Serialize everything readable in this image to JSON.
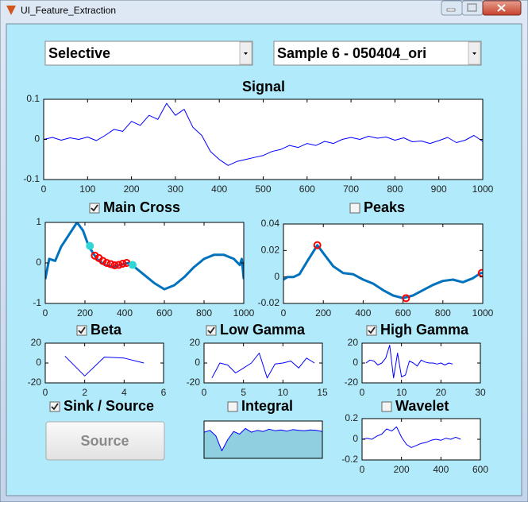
{
  "window": {
    "title": "UI_Feature_Extraction"
  },
  "dropdowns": [
    "Selective",
    "Sample 6 - 050404_ori"
  ],
  "button": {
    "label": "Source",
    "checkbox": {
      "label": "Sink / Source",
      "checked": true
    }
  },
  "charts": [
    {
      "type": "line",
      "title": "Signal",
      "xlim": [
        0,
        1000
      ],
      "ylim": [
        -0.1,
        0.1
      ],
      "xticks": [
        0,
        100,
        200,
        300,
        400,
        500,
        600,
        700,
        800,
        900,
        1000
      ],
      "yticks": [
        -0.1,
        0,
        0.1
      ],
      "series": [
        {
          "style": "line",
          "color": "#0000ff",
          "width": 1,
          "x": [
            0,
            20,
            40,
            60,
            80,
            100,
            120,
            140,
            160,
            180,
            200,
            220,
            240,
            260,
            280,
            300,
            320,
            340,
            360,
            380,
            400,
            420,
            440,
            460,
            480,
            500,
            520,
            540,
            560,
            580,
            600,
            620,
            640,
            660,
            680,
            700,
            720,
            740,
            760,
            780,
            800,
            820,
            840,
            860,
            880,
            900,
            920,
            940,
            960,
            980,
            1000
          ],
          "values": [
            0,
            0.005,
            -0.002,
            0.004,
            0,
            0.006,
            -0.003,
            0.01,
            0.025,
            0.02,
            0.045,
            0.035,
            0.06,
            0.05,
            0.09,
            0.06,
            0.075,
            0.03,
            0.01,
            -0.03,
            -0.05,
            -0.065,
            -0.055,
            -0.05,
            -0.045,
            -0.04,
            -0.03,
            -0.025,
            -0.015,
            -0.02,
            -0.01,
            -0.015,
            -0.005,
            -0.01,
            0,
            0.005,
            0,
            0.008,
            0.003,
            0.006,
            -0.002,
            0.004,
            -0.006,
            -0.004,
            -0.01,
            -0.003,
            0.005,
            -0.008,
            -0.002,
            0.01,
            -0.005
          ]
        }
      ]
    },
    {
      "type": "line",
      "checkbox": {
        "label": "Main Cross",
        "checked": true
      },
      "xlim": [
        0,
        1000
      ],
      "ylim": [
        -1,
        1
      ],
      "xticks": [
        0,
        200,
        400,
        600,
        800,
        1000
      ],
      "yticks": [
        -1,
        0,
        1
      ],
      "series": [
        {
          "style": "line",
          "color": "#0072bd",
          "width": 3,
          "x": [
            0,
            20,
            50,
            80,
            120,
            160,
            190,
            220,
            260,
            300,
            340,
            380,
            420,
            450,
            500,
            550,
            600,
            650,
            700,
            750,
            800,
            850,
            900,
            950,
            980,
            990,
            1000
          ],
          "values": [
            -0.4,
            0.1,
            0.05,
            0.4,
            0.7,
            1,
            0.8,
            0.4,
            0.1,
            -0.05,
            -0.1,
            -0.05,
            0,
            -0.1,
            -0.3,
            -0.5,
            -0.65,
            -0.55,
            -0.35,
            -0.1,
            0.1,
            0.2,
            0.2,
            0.1,
            -0.05,
            0.1,
            -0.4
          ]
        },
        {
          "style": "marker",
          "color": "#ff0000",
          "fill": "none",
          "x": [
            250,
            270,
            290,
            310,
            330,
            350,
            370,
            390,
            410
          ],
          "values": [
            0.18,
            0.12,
            0.05,
            0,
            -0.03,
            -0.06,
            -0.05,
            -0.02,
            0
          ]
        },
        {
          "style": "marker",
          "color": "#30d5d5",
          "fill": "#30d5d5",
          "x": [
            225,
            440
          ],
          "values": [
            0.42,
            -0.05
          ]
        }
      ]
    },
    {
      "type": "line",
      "checkbox": {
        "label": "Peaks",
        "checked": false
      },
      "xlim": [
        0,
        1000
      ],
      "ylim": [
        -0.02,
        0.04
      ],
      "xticks": [
        0,
        200,
        400,
        600,
        800,
        1000
      ],
      "yticks": [
        -0.02,
        0,
        0.02,
        0.04
      ],
      "series": [
        {
          "style": "line",
          "color": "#0072bd",
          "width": 3,
          "x": [
            0,
            20,
            50,
            80,
            120,
            170,
            200,
            250,
            300,
            350,
            400,
            450,
            500,
            550,
            600,
            650,
            700,
            750,
            800,
            850,
            900,
            950,
            990,
            1000
          ],
          "values": [
            -0.002,
            0,
            0,
            0.002,
            0.012,
            0.024,
            0.018,
            0.008,
            0.003,
            0.002,
            -0.002,
            -0.005,
            -0.01,
            -0.014,
            -0.016,
            -0.014,
            -0.01,
            -0.006,
            -0.003,
            -0.002,
            -0.004,
            -0.001,
            0.003,
            0.003
          ]
        },
        {
          "style": "marker",
          "color": "#ff0000",
          "fill": "none",
          "x": [
            170,
            615,
            995
          ],
          "values": [
            0.024,
            -0.016,
            0.003
          ]
        }
      ]
    },
    {
      "type": "line",
      "checkbox": {
        "label": "Beta",
        "checked": true
      },
      "xlim": [
        0,
        6
      ],
      "ylim": [
        -20,
        20
      ],
      "xticks": [
        0,
        2,
        4,
        6
      ],
      "yticks": [
        -20,
        0,
        20
      ],
      "series": [
        {
          "style": "line",
          "color": "#0000ff",
          "width": 1,
          "x": [
            1,
            2,
            3,
            4,
            5
          ],
          "values": [
            7,
            -13,
            6,
            5,
            0
          ]
        }
      ]
    },
    {
      "type": "line",
      "checkbox": {
        "label": "Low Gamma",
        "checked": true
      },
      "xlim": [
        0,
        15
      ],
      "ylim": [
        -20,
        20
      ],
      "xticks": [
        0,
        5,
        10,
        15
      ],
      "yticks": [
        -20,
        0,
        20
      ],
      "series": [
        {
          "style": "line",
          "color": "#0000ff",
          "width": 1,
          "x": [
            1,
            2,
            3,
            4,
            5,
            6,
            7,
            8,
            9,
            10,
            11,
            12,
            13,
            14
          ],
          "values": [
            -15,
            0,
            -2,
            -10,
            -5,
            0,
            10,
            -15,
            -1,
            0,
            2,
            -5,
            5,
            0
          ]
        }
      ]
    },
    {
      "type": "line",
      "checkbox": {
        "label": "High Gamma",
        "checked": true
      },
      "xlim": [
        0,
        30
      ],
      "ylim": [
        -20,
        20
      ],
      "xticks": [
        0,
        10,
        20,
        30
      ],
      "yticks": [
        -20,
        0,
        20
      ],
      "series": [
        {
          "style": "line",
          "color": "#0000ff",
          "width": 1,
          "x": [
            1,
            2,
            3,
            4,
            5,
            6,
            7,
            8,
            9,
            10,
            11,
            12,
            13,
            14,
            15,
            16,
            17,
            18,
            19,
            20,
            21,
            22,
            23
          ],
          "values": [
            0,
            3,
            2,
            -2,
            0,
            5,
            18,
            -15,
            10,
            -14,
            -12,
            2,
            0,
            -3,
            3,
            1,
            0,
            0,
            -1,
            0,
            -2,
            0,
            -1
          ]
        }
      ]
    },
    {
      "type": "area",
      "checkbox": {
        "label": "Integral",
        "checked": false
      },
      "xlim": [
        0,
        1000
      ],
      "ylim": [
        0,
        1
      ],
      "series": [
        {
          "style": "area",
          "color": "#0000ff",
          "fill": "#8fcfe0",
          "width": 1,
          "x": [
            0,
            50,
            100,
            150,
            200,
            250,
            300,
            350,
            400,
            450,
            500,
            550,
            600,
            650,
            700,
            750,
            800,
            850,
            900,
            950,
            1000
          ],
          "values": [
            0.7,
            0.75,
            0.6,
            0.2,
            0.5,
            0.72,
            0.65,
            0.8,
            0.7,
            0.75,
            0.72,
            0.78,
            0.74,
            0.76,
            0.73,
            0.77,
            0.75,
            0.74,
            0.76,
            0.75,
            0.72
          ]
        }
      ]
    },
    {
      "type": "line",
      "checkbox": {
        "label": "Wavelet",
        "checked": false
      },
      "xlim": [
        0,
        600
      ],
      "ylim": [
        -0.2,
        0.2
      ],
      "xticks": [
        0,
        200,
        400,
        600
      ],
      "yticks": [
        -0.2,
        0,
        0.2
      ],
      "series": [
        {
          "style": "line",
          "color": "#0000ff",
          "width": 1,
          "x": [
            0,
            25,
            50,
            75,
            100,
            125,
            150,
            175,
            200,
            225,
            250,
            275,
            300,
            325,
            350,
            375,
            400,
            425,
            450,
            475,
            500
          ],
          "values": [
            0,
            0.01,
            0,
            0.03,
            0.05,
            0.1,
            0.08,
            0.12,
            0.02,
            -0.05,
            -0.08,
            -0.06,
            -0.04,
            -0.03,
            -0.01,
            0,
            -0.01,
            0.01,
            0,
            0.02,
            0
          ]
        }
      ]
    }
  ]
}
